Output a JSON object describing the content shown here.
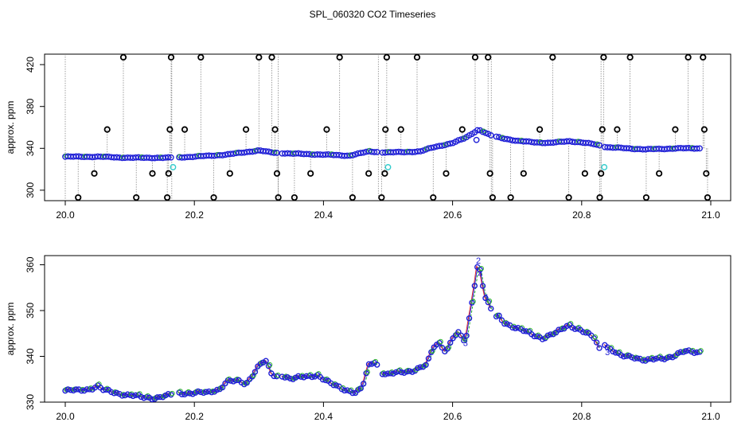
{
  "chart_data": {
    "title": "SPL_060320  CO2 Timeseries",
    "panels": [
      {
        "type": "scatter",
        "ylabel": "approx. ppm",
        "xlabel": "",
        "xlim": [
          20.0,
          21.0
        ],
        "ylim": [
          290,
          430
        ],
        "xticks": [
          "20.0",
          "20.2",
          "20.4",
          "20.6",
          "20.8",
          "21.0"
        ],
        "yticks": [
          "300",
          "340",
          "380",
          "420"
        ],
        "gaps": [
          [
            20.165,
            20.175
          ],
          [
            20.33,
            20.335
          ],
          [
            20.485,
            20.49
          ],
          [
            20.66,
            20.665
          ],
          [
            20.83,
            20.835
          ]
        ],
        "baseline": [
          [
            20.0,
            332
          ],
          [
            20.05,
            332
          ],
          [
            20.1,
            331
          ],
          [
            20.16,
            331
          ],
          [
            20.2,
            332
          ],
          [
            20.25,
            334
          ],
          [
            20.3,
            338
          ],
          [
            20.32,
            336
          ],
          [
            20.35,
            335
          ],
          [
            20.4,
            334
          ],
          [
            20.44,
            333
          ],
          [
            20.47,
            337
          ],
          [
            20.5,
            336
          ],
          [
            20.55,
            337
          ],
          [
            20.57,
            341
          ],
          [
            20.6,
            345
          ],
          [
            20.62,
            350
          ],
          [
            20.64,
            358
          ],
          [
            20.66,
            352
          ],
          [
            20.7,
            347
          ],
          [
            20.75,
            345
          ],
          [
            20.78,
            347
          ],
          [
            20.82,
            344
          ],
          [
            20.84,
            341
          ],
          [
            20.9,
            339
          ],
          [
            20.95,
            340
          ],
          [
            20.98,
            340
          ]
        ],
        "outliers": [
          [
            20.02,
            293
          ],
          [
            20.045,
            316
          ],
          [
            20.065,
            358
          ],
          [
            20.09,
            427
          ],
          [
            20.11,
            293
          ],
          [
            20.135,
            316
          ],
          [
            20.158,
            293
          ],
          [
            20.16,
            316
          ],
          [
            20.162,
            358
          ],
          [
            20.164,
            427
          ],
          [
            20.185,
            358
          ],
          [
            20.21,
            427
          ],
          [
            20.23,
            293
          ],
          [
            20.255,
            316
          ],
          [
            20.28,
            358
          ],
          [
            20.3,
            427
          ],
          [
            20.32,
            427
          ],
          [
            20.325,
            358
          ],
          [
            20.328,
            316
          ],
          [
            20.33,
            293
          ],
          [
            20.355,
            293
          ],
          [
            20.38,
            316
          ],
          [
            20.405,
            358
          ],
          [
            20.425,
            427
          ],
          [
            20.445,
            293
          ],
          [
            20.47,
            316
          ],
          [
            20.49,
            293
          ],
          [
            20.495,
            316
          ],
          [
            20.496,
            358
          ],
          [
            20.498,
            427
          ],
          [
            20.52,
            358
          ],
          [
            20.545,
            427
          ],
          [
            20.57,
            293
          ],
          [
            20.59,
            316
          ],
          [
            20.615,
            358
          ],
          [
            20.635,
            427
          ],
          [
            20.655,
            427
          ],
          [
            20.658,
            316
          ],
          [
            20.662,
            293
          ],
          [
            20.69,
            293
          ],
          [
            20.71,
            316
          ],
          [
            20.735,
            358
          ],
          [
            20.755,
            427
          ],
          [
            20.78,
            293
          ],
          [
            20.805,
            316
          ],
          [
            20.828,
            293
          ],
          [
            20.83,
            316
          ],
          [
            20.832,
            358
          ],
          [
            20.834,
            427
          ],
          [
            20.855,
            358
          ],
          [
            20.875,
            427
          ],
          [
            20.9,
            293
          ],
          [
            20.92,
            316
          ],
          [
            20.945,
            358
          ],
          [
            20.965,
            427
          ],
          [
            20.988,
            427
          ],
          [
            20.99,
            358
          ],
          [
            20.993,
            316
          ],
          [
            20.995,
            293
          ]
        ],
        "cyan_points": [
          [
            20.167,
            322
          ],
          [
            20.5,
            322
          ],
          [
            20.835,
            322
          ]
        ]
      },
      {
        "type": "line",
        "ylabel": "approx. ppm",
        "xlabel": "",
        "xlim": [
          20.0,
          21.0
        ],
        "ylim": [
          330,
          362
        ],
        "xticks": [
          "20.0",
          "20.2",
          "20.4",
          "20.6",
          "20.8",
          "21.0"
        ],
        "yticks": [
          "330",
          "340",
          "350",
          "360"
        ],
        "gaps": [
          [
            20.165,
            20.175
          ],
          [
            20.33,
            20.335
          ],
          [
            20.485,
            20.49
          ],
          [
            20.66,
            20.665
          ],
          [
            20.83,
            20.835
          ]
        ],
        "series": [
          [
            20.0,
            332.5
          ],
          [
            20.02,
            332.5
          ],
          [
            20.04,
            333
          ],
          [
            20.05,
            333.5
          ],
          [
            20.06,
            332.5
          ],
          [
            20.08,
            332
          ],
          [
            20.1,
            331.5
          ],
          [
            20.12,
            331
          ],
          [
            20.14,
            331
          ],
          [
            20.165,
            331.5
          ],
          [
            20.175,
            332
          ],
          [
            20.2,
            332
          ],
          [
            20.22,
            332
          ],
          [
            20.24,
            333
          ],
          [
            20.25,
            334.5
          ],
          [
            20.27,
            334.5
          ],
          [
            20.28,
            334
          ],
          [
            20.29,
            336
          ],
          [
            20.3,
            338
          ],
          [
            20.31,
            339
          ],
          [
            20.32,
            336
          ],
          [
            20.33,
            335.5
          ],
          [
            20.335,
            336
          ],
          [
            20.35,
            335
          ],
          [
            20.37,
            335.5
          ],
          [
            20.39,
            336
          ],
          [
            20.41,
            334
          ],
          [
            20.43,
            333
          ],
          [
            20.45,
            332
          ],
          [
            20.46,
            333
          ],
          [
            20.47,
            338
          ],
          [
            20.48,
            339
          ],
          [
            20.49,
            336.5
          ],
          [
            20.5,
            336
          ],
          [
            20.52,
            336.5
          ],
          [
            20.54,
            337
          ],
          [
            20.56,
            338
          ],
          [
            20.57,
            342
          ],
          [
            20.58,
            343
          ],
          [
            20.59,
            341
          ],
          [
            20.6,
            344
          ],
          [
            20.61,
            345
          ],
          [
            20.62,
            343
          ],
          [
            20.63,
            352
          ],
          [
            20.64,
            361
          ],
          [
            20.65,
            353
          ],
          [
            20.66,
            350
          ],
          [
            20.665,
            348
          ],
          [
            20.67,
            349
          ],
          [
            20.68,
            347.5
          ],
          [
            20.7,
            346
          ],
          [
            20.72,
            345
          ],
          [
            20.74,
            344
          ],
          [
            20.76,
            345
          ],
          [
            20.78,
            347
          ],
          [
            20.8,
            345.5
          ],
          [
            20.82,
            344
          ],
          [
            20.83,
            341
          ],
          [
            20.835,
            343
          ],
          [
            20.84,
            342
          ],
          [
            20.86,
            340
          ],
          [
            20.88,
            340
          ],
          [
            20.9,
            339
          ],
          [
            20.92,
            339.5
          ],
          [
            20.94,
            340
          ],
          [
            20.96,
            341
          ],
          [
            20.98,
            341
          ]
        ],
        "labels": [
          {
            "x": 20.62,
            "y": 343,
            "text": "3"
          },
          {
            "x": 20.64,
            "y": 361,
            "text": "2"
          },
          {
            "x": 20.643,
            "y": 358,
            "text": "4"
          },
          {
            "x": 20.653,
            "y": 353,
            "text": "1"
          },
          {
            "x": 20.84,
            "y": 341,
            "text": "3"
          }
        ]
      }
    ]
  }
}
